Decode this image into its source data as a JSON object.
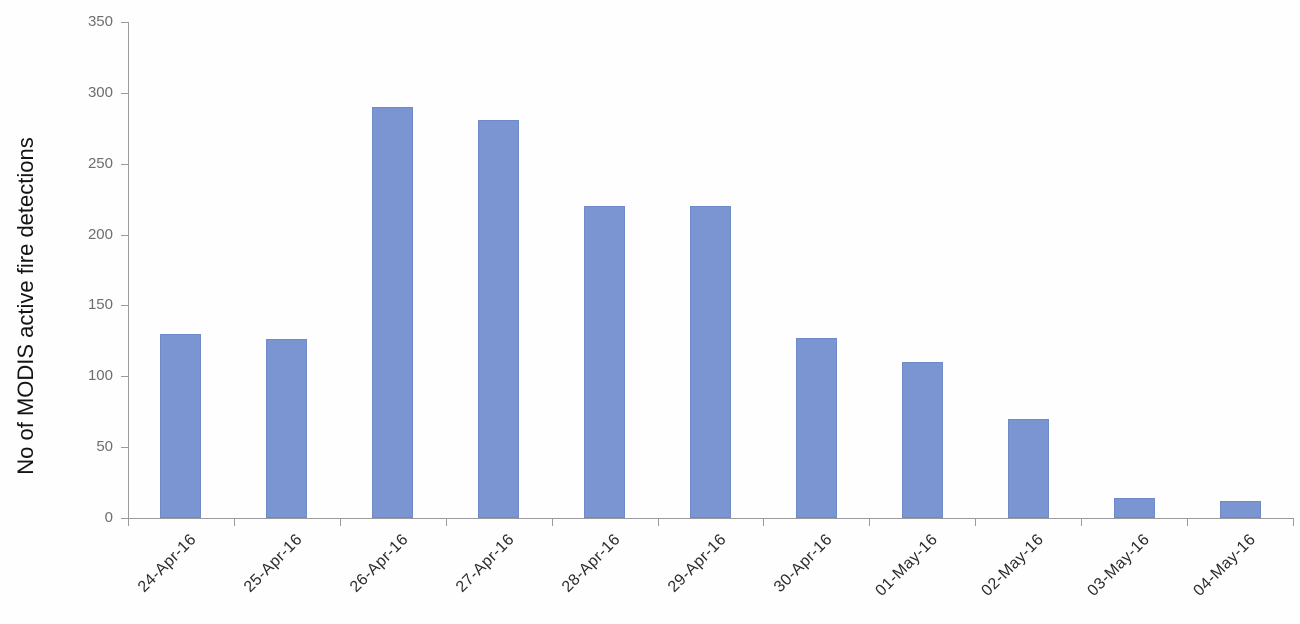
{
  "chart_data": {
    "type": "bar",
    "title": "",
    "xlabel": "",
    "ylabel": "No of MODIS active fire detections",
    "categories": [
      "24-Apr-16",
      "25-Apr-16",
      "26-Apr-16",
      "27-Apr-16",
      "28-Apr-16",
      "29-Apr-16",
      "30-Apr-16",
      "01-May-16",
      "02-May-16",
      "03-May-16",
      "04-May-16"
    ],
    "values": [
      130,
      126,
      290,
      281,
      220,
      220,
      127,
      110,
      70,
      14,
      12
    ],
    "ylim": [
      0,
      350
    ],
    "yticks": [
      0,
      50,
      100,
      150,
      200,
      250,
      300,
      350
    ],
    "grid": false,
    "legend": "none",
    "colors": {
      "bar_fill": "#7B95D3",
      "bar_border": "#6F8AC9",
      "axis": "#9B9B9B",
      "y_tick_label": "#6E6E6E",
      "x_tick_label": "#2B2B2B",
      "y_axis_title": "#141414",
      "background": "#FEFEFE"
    }
  }
}
